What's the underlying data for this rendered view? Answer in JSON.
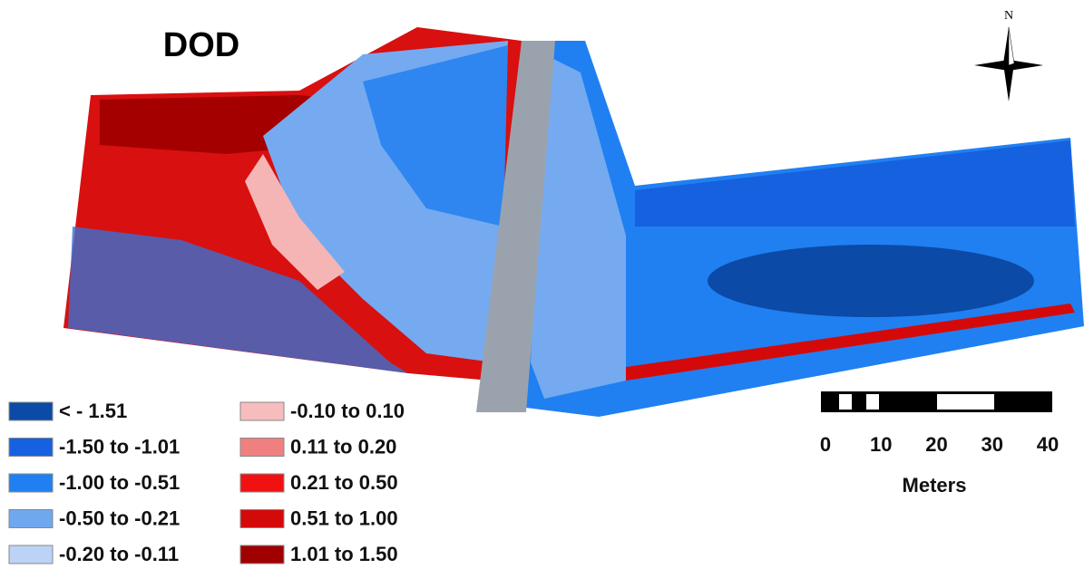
{
  "title": "DOD",
  "north": "N",
  "legend": [
    {
      "label": "< - 1.51",
      "color": "#0b4aa6"
    },
    {
      "label": "-1.50 to -1.01",
      "color": "#1561e0"
    },
    {
      "label": "-1.00 to -0.51",
      "color": "#2080f2"
    },
    {
      "label": "-0.50 to -0.21",
      "color": "#70a8ee"
    },
    {
      "label": "-0.20 to -0.11",
      "color": "#bcd3f6"
    },
    {
      "label": "-0.10 to  0.10",
      "color": "#f7bcbc"
    },
    {
      "label": "0.11 to 0.20",
      "color": "#f08080"
    },
    {
      "label": "0.21 to 0.50",
      "color": "#f01212"
    },
    {
      "label": "0.51 to 1.00",
      "color": "#d40a0a"
    },
    {
      "label": "1.01 to 1.50",
      "color": "#a00000"
    }
  ],
  "scale": {
    "ticks": [
      0,
      10,
      20,
      30,
      40
    ],
    "unit": "Meters"
  }
}
